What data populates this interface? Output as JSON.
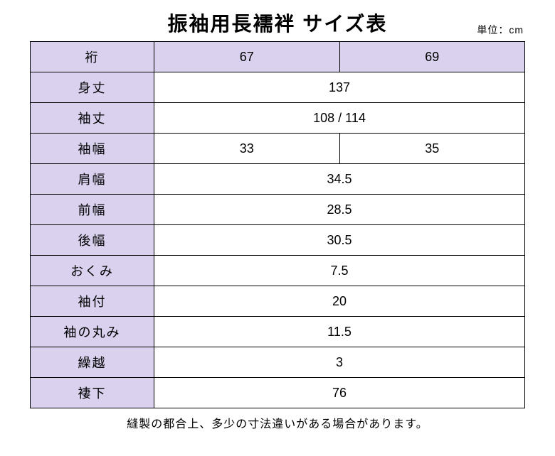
{
  "title": "振袖用長襦袢 サイズ表",
  "unit": "単位：cm",
  "colors": {
    "header_bg": "#d9d1ee",
    "border": "#000000",
    "background": "#ffffff",
    "text": "#000000"
  },
  "table": {
    "header_row": {
      "label": "裄",
      "cols": [
        "67",
        "69"
      ]
    },
    "rows": [
      {
        "label": "身丈",
        "span": true,
        "value": "137"
      },
      {
        "label": "袖丈",
        "span": true,
        "value": "108 / 114"
      },
      {
        "label": "袖幅",
        "span": false,
        "cols": [
          "33",
          "35"
        ]
      },
      {
        "label": "肩幅",
        "span": true,
        "value": "34.5"
      },
      {
        "label": "前幅",
        "span": true,
        "value": "28.5"
      },
      {
        "label": "後幅",
        "span": true,
        "value": "30.5"
      },
      {
        "label": "おくみ",
        "span": true,
        "value": "7.5"
      },
      {
        "label": "袖付",
        "span": true,
        "value": "20"
      },
      {
        "label": "袖の丸み",
        "span": true,
        "value": "11.5"
      },
      {
        "label": "繰越",
        "span": true,
        "value": "3"
      },
      {
        "label": "褄下",
        "span": true,
        "value": "76"
      }
    ]
  },
  "footnote": "縫製の都合上、多少の寸法違いがある場合があります。"
}
